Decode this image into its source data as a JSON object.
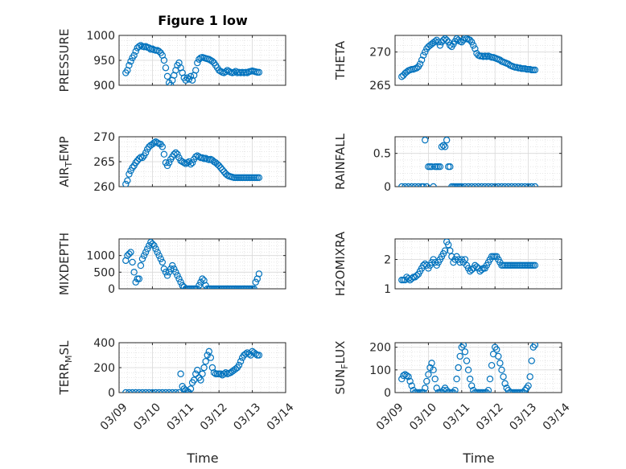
{
  "figure": {
    "title": "Figure 1 low",
    "xlabel": "Time"
  },
  "colors": {
    "marker": "#0072BD",
    "axis": "#262626",
    "grid": "#d9d9d9"
  },
  "chart_data": [
    {
      "type": "scatter",
      "panel": "top-left",
      "ylabel": "PRESSURE",
      "ylim": [
        900,
        1000
      ],
      "yticks": [
        "900",
        "950",
        "1000"
      ],
      "xlim": [
        0,
        5
      ],
      "grid": true,
      "x_tick_labels_shown": false,
      "x": [
        0.2,
        0.25,
        0.3,
        0.35,
        0.4,
        0.45,
        0.5,
        0.55,
        0.6,
        0.65,
        0.7,
        0.75,
        0.8,
        0.85,
        0.9,
        0.95,
        1.0,
        1.05,
        1.1,
        1.15,
        1.2,
        1.25,
        1.3,
        1.35,
        1.4,
        1.45,
        1.5,
        1.55,
        1.6,
        1.65,
        1.7,
        1.75,
        1.8,
        1.85,
        1.9,
        1.95,
        2.0,
        2.05,
        2.1,
        2.15,
        2.2,
        2.25,
        2.3,
        2.35,
        2.4,
        2.45,
        2.5,
        2.55,
        2.6,
        2.65,
        2.7,
        2.75,
        2.8,
        2.85,
        2.9,
        2.95,
        3.0,
        3.05,
        3.1,
        3.15,
        3.2,
        3.25,
        3.3,
        3.35,
        3.4,
        3.45,
        3.5,
        3.55,
        3.6,
        3.65,
        3.7,
        3.75,
        3.8,
        3.85,
        3.9,
        3.95,
        4.0,
        4.05,
        4.1,
        4.15,
        4.2
      ],
      "y": [
        925,
        930,
        940,
        948,
        955,
        960,
        968,
        975,
        978,
        980,
        978,
        977,
        978,
        976,
        975,
        972,
        973,
        971,
        970,
        970,
        968,
        965,
        960,
        950,
        935,
        918,
        905,
        900,
        910,
        920,
        930,
        940,
        945,
        935,
        925,
        915,
        910,
        915,
        912,
        918,
        910,
        920,
        930,
        945,
        952,
        955,
        956,
        955,
        954,
        953,
        952,
        950,
        948,
        945,
        940,
        935,
        930,
        928,
        926,
        925,
        927,
        930,
        928,
        926,
        925,
        926,
        928,
        925,
        926,
        925,
        926,
        925,
        926,
        925,
        927,
        928,
        929,
        928,
        927,
        926,
        926
      ]
    },
    {
      "type": "scatter",
      "panel": "top-right",
      "ylabel": "THETA",
      "ylim": [
        265,
        272.5
      ],
      "yticks": [
        "265",
        "270"
      ],
      "xlim": [
        0,
        5
      ],
      "grid": true,
      "x_tick_labels_shown": false,
      "x": [
        0.2,
        0.25,
        0.3,
        0.35,
        0.4,
        0.45,
        0.5,
        0.55,
        0.6,
        0.65,
        0.7,
        0.75,
        0.8,
        0.85,
        0.9,
        0.95,
        1.0,
        1.05,
        1.1,
        1.15,
        1.2,
        1.25,
        1.3,
        1.35,
        1.4,
        1.45,
        1.5,
        1.55,
        1.6,
        1.65,
        1.7,
        1.75,
        1.8,
        1.85,
        1.9,
        1.95,
        2.0,
        2.05,
        2.1,
        2.15,
        2.2,
        2.25,
        2.3,
        2.35,
        2.4,
        2.45,
        2.5,
        2.55,
        2.6,
        2.65,
        2.7,
        2.75,
        2.8,
        2.85,
        2.9,
        2.95,
        3.0,
        3.05,
        3.1,
        3.15,
        3.2,
        3.25,
        3.3,
        3.35,
        3.4,
        3.45,
        3.5,
        3.55,
        3.6,
        3.65,
        3.7,
        3.75,
        3.8,
        3.85,
        3.9,
        3.95,
        4.0,
        4.05,
        4.1,
        4.15,
        4.2
      ],
      "y": [
        266.3,
        266.5,
        266.8,
        267.0,
        267.2,
        267.3,
        267.4,
        267.4,
        267.5,
        267.6,
        267.8,
        268.2,
        268.8,
        269.5,
        270.0,
        270.5,
        270.8,
        271.0,
        271.2,
        271.4,
        271.6,
        271.8,
        271.5,
        271.0,
        271.5,
        271.8,
        272.0,
        271.8,
        271.5,
        271.0,
        270.8,
        271.2,
        271.6,
        272.0,
        271.8,
        271.6,
        271.5,
        271.8,
        272.1,
        272.0,
        271.9,
        271.8,
        271.5,
        271.0,
        270.5,
        269.8,
        269.5,
        269.4,
        269.4,
        269.3,
        269.4,
        269.3,
        269.4,
        269.3,
        269.2,
        269.2,
        269.1,
        269.0,
        268.9,
        268.8,
        268.6,
        268.5,
        268.4,
        268.3,
        268.2,
        268.0,
        267.9,
        267.8,
        267.7,
        267.7,
        267.6,
        267.6,
        267.5,
        267.5,
        267.5,
        267.4,
        267.4,
        267.4,
        267.3,
        267.3,
        267.3
      ]
    },
    {
      "type": "scatter",
      "panel": "middle-left",
      "ylabel": "AIR_TEMP",
      "ylim": [
        260,
        270
      ],
      "yticks": [
        "260",
        "265",
        "270"
      ],
      "xlim": [
        0,
        5
      ],
      "grid": true,
      "x_tick_labels_shown": false,
      "x": [
        0.2,
        0.25,
        0.3,
        0.35,
        0.4,
        0.45,
        0.5,
        0.55,
        0.6,
        0.65,
        0.7,
        0.75,
        0.8,
        0.85,
        0.9,
        0.95,
        1.0,
        1.05,
        1.1,
        1.15,
        1.2,
        1.25,
        1.3,
        1.35,
        1.4,
        1.45,
        1.5,
        1.55,
        1.6,
        1.65,
        1.7,
        1.75,
        1.8,
        1.85,
        1.9,
        1.95,
        2.0,
        2.05,
        2.1,
        2.15,
        2.2,
        2.25,
        2.3,
        2.35,
        2.4,
        2.45,
        2.5,
        2.55,
        2.6,
        2.65,
        2.7,
        2.75,
        2.8,
        2.85,
        2.9,
        2.95,
        3.0,
        3.05,
        3.1,
        3.15,
        3.2,
        3.25,
        3.3,
        3.35,
        3.4,
        3.45,
        3.5,
        3.55,
        3.6,
        3.65,
        3.7,
        3.75,
        3.8,
        3.85,
        3.9,
        3.95,
        4.0,
        4.05,
        4.1,
        4.15,
        4.2
      ],
      "y": [
        260.5,
        261.2,
        262.5,
        263.2,
        263.8,
        264.2,
        264.8,
        265.2,
        265.6,
        265.9,
        265.8,
        266.2,
        266.8,
        267.5,
        268.0,
        268.3,
        268.5,
        268.8,
        269.0,
        268.8,
        268.6,
        268.5,
        268.0,
        266.5,
        264.8,
        264.2,
        264.8,
        265.5,
        266.0,
        266.5,
        266.8,
        266.5,
        265.8,
        265.2,
        265.0,
        264.8,
        264.6,
        264.8,
        265.0,
        264.5,
        264.8,
        265.5,
        266.0,
        266.2,
        266.0,
        265.8,
        265.8,
        265.6,
        265.7,
        265.5,
        265.4,
        265.5,
        265.3,
        265.0,
        264.8,
        264.5,
        264.2,
        263.8,
        263.4,
        263.0,
        262.6,
        262.3,
        262.1,
        262.0,
        261.9,
        261.8,
        261.8,
        261.8,
        261.8,
        261.8,
        261.8,
        261.8,
        261.8,
        261.8,
        261.8,
        261.8,
        261.8,
        261.8,
        261.8,
        261.8,
        261.8
      ]
    },
    {
      "type": "scatter",
      "panel": "middle-right",
      "ylabel": "RAINFALL",
      "ylim": [
        0,
        0.75
      ],
      "yticks": [
        "0",
        "0.5"
      ],
      "xlim": [
        0,
        5
      ],
      "grid": true,
      "x_tick_labels_shown": false,
      "x": [
        0.2,
        0.3,
        0.4,
        0.5,
        0.6,
        0.7,
        0.8,
        0.85,
        0.9,
        0.95,
        1.0,
        1.05,
        1.1,
        1.15,
        1.2,
        1.25,
        1.3,
        1.35,
        1.4,
        1.45,
        1.5,
        1.55,
        1.6,
        1.65,
        1.7,
        1.75,
        1.8,
        1.85,
        1.9,
        1.95,
        2.0,
        2.1,
        2.2,
        2.3,
        2.4,
        2.5,
        2.6,
        2.7,
        2.8,
        2.9,
        3.0,
        3.1,
        3.2,
        3.3,
        3.4,
        3.5,
        3.6,
        3.7,
        3.8,
        3.9,
        4.0,
        4.1,
        4.2
      ],
      "y": [
        0,
        0,
        0,
        0,
        0,
        0,
        0,
        0,
        0.7,
        0,
        0.3,
        0.3,
        0.3,
        0,
        0.3,
        0.3,
        0.3,
        0.3,
        0.6,
        0.62,
        0.6,
        0.7,
        0.3,
        0.3,
        0,
        0,
        0,
        0,
        0,
        0,
        0,
        0,
        0,
        0,
        0,
        0,
        0,
        0,
        0,
        0,
        0,
        0,
        0,
        0,
        0,
        0,
        0,
        0,
        0,
        0,
        0,
        0,
        0
      ]
    },
    {
      "type": "scatter",
      "panel": "lower-left",
      "ylabel": "MIXDEPTH",
      "ylim": [
        0,
        1500
      ],
      "yticks": [
        "0",
        "500",
        "1000"
      ],
      "xlim": [
        0,
        5
      ],
      "grid": true,
      "x_tick_labels_shown": false,
      "x": [
        0.2,
        0.25,
        0.3,
        0.35,
        0.4,
        0.45,
        0.5,
        0.55,
        0.6,
        0.65,
        0.7,
        0.75,
        0.8,
        0.85,
        0.9,
        0.95,
        1.0,
        1.05,
        1.1,
        1.15,
        1.2,
        1.25,
        1.3,
        1.35,
        1.4,
        1.45,
        1.5,
        1.55,
        1.6,
        1.65,
        1.7,
        1.75,
        1.8,
        1.85,
        1.9,
        1.95,
        2.0,
        2.05,
        2.1,
        2.15,
        2.2,
        2.25,
        2.3,
        2.35,
        2.4,
        2.45,
        2.5,
        2.55,
        2.6,
        2.65,
        2.7,
        2.75,
        2.8,
        2.85,
        2.9,
        2.95,
        3.0,
        3.05,
        3.1,
        3.15,
        3.2,
        3.25,
        3.3,
        3.35,
        3.4,
        3.45,
        3.5,
        3.55,
        3.6,
        3.65,
        3.7,
        3.75,
        3.8,
        3.85,
        3.9,
        3.95,
        4.0,
        4.05,
        4.1,
        4.15,
        4.2
      ],
      "y": [
        850,
        1000,
        1050,
        1100,
        800,
        500,
        200,
        300,
        300,
        700,
        900,
        1000,
        1100,
        1200,
        1300,
        1400,
        1350,
        1300,
        1200,
        1100,
        1000,
        900,
        800,
        600,
        500,
        400,
        500,
        600,
        700,
        600,
        500,
        400,
        300,
        200,
        100,
        50,
        0,
        0,
        0,
        0,
        0,
        0,
        0,
        0,
        100,
        200,
        300,
        250,
        100,
        0,
        0,
        0,
        0,
        0,
        0,
        0,
        0,
        0,
        0,
        0,
        0,
        0,
        0,
        0,
        0,
        0,
        0,
        0,
        0,
        0,
        0,
        0,
        0,
        0,
        0,
        0,
        0,
        0,
        200,
        300,
        450
      ]
    },
    {
      "type": "scatter",
      "panel": "lower-right",
      "ylabel": "H2OMIXRA",
      "ylim": [
        1,
        2.7
      ],
      "yticks": [
        "1",
        "2"
      ],
      "xlim": [
        0,
        5
      ],
      "grid": true,
      "x_tick_labels_shown": false,
      "x": [
        0.2,
        0.25,
        0.3,
        0.35,
        0.4,
        0.45,
        0.5,
        0.55,
        0.6,
        0.65,
        0.7,
        0.75,
        0.8,
        0.85,
        0.9,
        0.95,
        1.0,
        1.05,
        1.1,
        1.15,
        1.2,
        1.25,
        1.3,
        1.35,
        1.4,
        1.45,
        1.5,
        1.55,
        1.6,
        1.65,
        1.7,
        1.75,
        1.8,
        1.85,
        1.9,
        1.95,
        2.0,
        2.05,
        2.1,
        2.15,
        2.2,
        2.25,
        2.3,
        2.35,
        2.4,
        2.45,
        2.5,
        2.55,
        2.6,
        2.65,
        2.7,
        2.75,
        2.8,
        2.85,
        2.9,
        2.95,
        3.0,
        3.05,
        3.1,
        3.15,
        3.2,
        3.25,
        3.3,
        3.35,
        3.4,
        3.45,
        3.5,
        3.55,
        3.6,
        3.65,
        3.7,
        3.75,
        3.8,
        3.85,
        3.9,
        3.95,
        4.0,
        4.05,
        4.1,
        4.15,
        4.2
      ],
      "y": [
        1.3,
        1.3,
        1.3,
        1.4,
        1.35,
        1.3,
        1.35,
        1.4,
        1.4,
        1.45,
        1.5,
        1.6,
        1.7,
        1.8,
        1.85,
        1.8,
        1.7,
        1.8,
        1.9,
        2.0,
        1.9,
        1.8,
        1.9,
        2.0,
        2.1,
        2.2,
        2.3,
        2.6,
        2.5,
        2.3,
        2.1,
        1.9,
        2.0,
        2.1,
        2.0,
        1.9,
        2.0,
        1.9,
        2.0,
        1.8,
        1.7,
        1.6,
        1.65,
        1.7,
        1.8,
        1.75,
        1.7,
        1.6,
        1.65,
        1.7,
        1.7,
        1.8,
        1.9,
        2.0,
        2.1,
        2.1,
        2.1,
        2.1,
        2.0,
        1.9,
        1.8,
        1.8,
        1.8,
        1.8,
        1.8,
        1.8,
        1.8,
        1.8,
        1.8,
        1.8,
        1.8,
        1.8,
        1.8,
        1.8,
        1.8,
        1.8,
        1.8,
        1.8,
        1.8,
        1.8,
        1.8
      ]
    },
    {
      "type": "scatter",
      "panel": "bottom-left",
      "ylabel": "TERR_MSL",
      "ylim": [
        0,
        400
      ],
      "yticks": [
        "0",
        "200",
        "400"
      ],
      "xlim": [
        0,
        5
      ],
      "xticks": [
        "03/09",
        "03/10",
        "03/11",
        "03/12",
        "03/13",
        "03/14"
      ],
      "grid": true,
      "xlabel": "Time",
      "x": [
        0.2,
        0.3,
        0.4,
        0.5,
        0.6,
        0.7,
        0.8,
        0.9,
        1.0,
        1.1,
        1.2,
        1.3,
        1.4,
        1.5,
        1.6,
        1.7,
        1.8,
        1.85,
        1.9,
        1.95,
        2.0,
        2.05,
        2.1,
        2.15,
        2.2,
        2.25,
        2.3,
        2.35,
        2.4,
        2.45,
        2.5,
        2.55,
        2.6,
        2.65,
        2.7,
        2.75,
        2.8,
        2.85,
        2.9,
        2.95,
        3.0,
        3.05,
        3.1,
        3.15,
        3.2,
        3.25,
        3.3,
        3.35,
        3.4,
        3.45,
        3.5,
        3.55,
        3.6,
        3.65,
        3.7,
        3.75,
        3.8,
        3.85,
        3.9,
        3.95,
        4.0,
        4.05,
        4.1,
        4.15,
        4.2
      ],
      "y": [
        0,
        0,
        0,
        0,
        0,
        0,
        0,
        0,
        0,
        0,
        0,
        0,
        0,
        0,
        0,
        0,
        0,
        150,
        50,
        30,
        20,
        10,
        0,
        30,
        80,
        100,
        150,
        180,
        120,
        100,
        150,
        200,
        250,
        300,
        330,
        280,
        200,
        160,
        150,
        150,
        150,
        150,
        140,
        150,
        160,
        150,
        155,
        160,
        170,
        180,
        190,
        200,
        220,
        250,
        280,
        300,
        310,
        320,
        310,
        300,
        330,
        320,
        310,
        300,
        300
      ]
    },
    {
      "type": "scatter",
      "panel": "bottom-right",
      "ylabel": "SUN_FLUX",
      "ylim": [
        0,
        220
      ],
      "yticks": [
        "0",
        "100",
        "200"
      ],
      "xlim": [
        0,
        5
      ],
      "xticks": [
        "03/09",
        "03/10",
        "03/11",
        "03/12",
        "03/13",
        "03/14"
      ],
      "grid": true,
      "xlabel": "Time",
      "x": [
        0.2,
        0.25,
        0.3,
        0.35,
        0.4,
        0.45,
        0.5,
        0.55,
        0.6,
        0.65,
        0.7,
        0.75,
        0.8,
        0.85,
        0.9,
        0.95,
        1.0,
        1.05,
        1.1,
        1.15,
        1.2,
        1.25,
        1.3,
        1.35,
        1.4,
        1.45,
        1.5,
        1.55,
        1.6,
        1.65,
        1.7,
        1.75,
        1.8,
        1.85,
        1.9,
        1.95,
        2.0,
        2.05,
        2.1,
        2.15,
        2.2,
        2.25,
        2.3,
        2.35,
        2.4,
        2.45,
        2.5,
        2.55,
        2.6,
        2.65,
        2.7,
        2.75,
        2.8,
        2.85,
        2.9,
        2.95,
        3.0,
        3.05,
        3.1,
        3.15,
        3.2,
        3.25,
        3.3,
        3.35,
        3.4,
        3.45,
        3.5,
        3.55,
        3.6,
        3.65,
        3.7,
        3.75,
        3.8,
        3.85,
        3.9,
        3.95,
        4.0,
        4.05,
        4.1,
        4.15,
        4.2
      ],
      "y": [
        60,
        75,
        80,
        75,
        70,
        50,
        30,
        10,
        0,
        0,
        0,
        0,
        0,
        0,
        20,
        50,
        80,
        110,
        130,
        100,
        60,
        20,
        0,
        0,
        0,
        10,
        20,
        10,
        0,
        0,
        0,
        0,
        10,
        60,
        110,
        160,
        200,
        210,
        180,
        140,
        100,
        60,
        30,
        10,
        0,
        0,
        0,
        0,
        0,
        0,
        0,
        0,
        10,
        60,
        120,
        170,
        200,
        190,
        160,
        130,
        100,
        70,
        40,
        20,
        10,
        0,
        0,
        0,
        0,
        0,
        0,
        0,
        0,
        0,
        10,
        20,
        30,
        70,
        140,
        200,
        210
      ]
    }
  ]
}
